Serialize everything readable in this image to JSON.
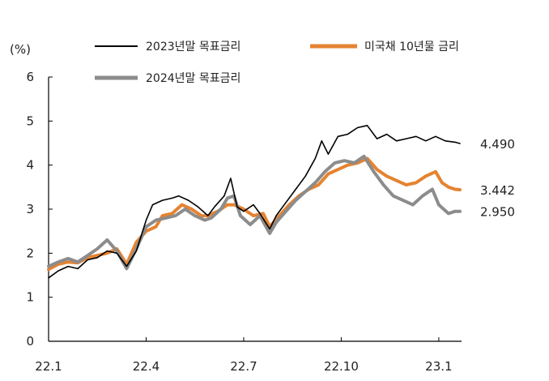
{
  "chart_data": {
    "type": "line",
    "unit_label": "(%)",
    "ylim": [
      0,
      6
    ],
    "yticks": [
      "0",
      "1",
      "2",
      "3",
      "4",
      "5",
      "6"
    ],
    "xlim": [
      0,
      12.7
    ],
    "xticks": [
      {
        "pos": 0,
        "label": "22.1"
      },
      {
        "pos": 3,
        "label": "22.4"
      },
      {
        "pos": 6,
        "label": "22.7"
      },
      {
        "pos": 9,
        "label": "22.10"
      },
      {
        "pos": 12,
        "label": "23.1"
      }
    ],
    "grid": false,
    "legend_position": "top",
    "series": [
      {
        "name": "2023년말 목표금리",
        "color": "#000000",
        "end_value_label": "4.490",
        "points": [
          [
            0.0,
            1.44
          ],
          [
            0.3,
            1.6
          ],
          [
            0.6,
            1.7
          ],
          [
            0.9,
            1.65
          ],
          [
            1.2,
            1.85
          ],
          [
            1.5,
            1.9
          ],
          [
            1.8,
            2.05
          ],
          [
            2.1,
            2.0
          ],
          [
            2.4,
            1.7
          ],
          [
            2.7,
            2.05
          ],
          [
            3.0,
            2.75
          ],
          [
            3.2,
            3.1
          ],
          [
            3.5,
            3.2
          ],
          [
            3.8,
            3.25
          ],
          [
            4.0,
            3.3
          ],
          [
            4.3,
            3.2
          ],
          [
            4.6,
            3.05
          ],
          [
            4.9,
            2.85
          ],
          [
            5.1,
            3.05
          ],
          [
            5.4,
            3.3
          ],
          [
            5.6,
            3.7
          ],
          [
            5.8,
            3.05
          ],
          [
            6.0,
            2.95
          ],
          [
            6.3,
            3.1
          ],
          [
            6.5,
            2.9
          ],
          [
            6.8,
            2.55
          ],
          [
            7.0,
            2.85
          ],
          [
            7.3,
            3.15
          ],
          [
            7.6,
            3.45
          ],
          [
            7.9,
            3.75
          ],
          [
            8.2,
            4.15
          ],
          [
            8.4,
            4.55
          ],
          [
            8.6,
            4.25
          ],
          [
            8.9,
            4.65
          ],
          [
            9.2,
            4.7
          ],
          [
            9.5,
            4.85
          ],
          [
            9.8,
            4.9
          ],
          [
            10.1,
            4.6
          ],
          [
            10.4,
            4.7
          ],
          [
            10.7,
            4.55
          ],
          [
            11.0,
            4.6
          ],
          [
            11.3,
            4.65
          ],
          [
            11.6,
            4.55
          ],
          [
            11.9,
            4.65
          ],
          [
            12.2,
            4.55
          ],
          [
            12.5,
            4.52
          ],
          [
            12.65,
            4.49
          ]
        ]
      },
      {
        "name": "미국채 10년물 금리",
        "color": "#e58331",
        "end_value_label": "3.442",
        "points": [
          [
            0.0,
            1.63
          ],
          [
            0.3,
            1.75
          ],
          [
            0.6,
            1.8
          ],
          [
            0.9,
            1.78
          ],
          [
            1.2,
            1.9
          ],
          [
            1.5,
            1.95
          ],
          [
            1.8,
            2.0
          ],
          [
            2.1,
            2.1
          ],
          [
            2.4,
            1.75
          ],
          [
            2.7,
            2.25
          ],
          [
            3.0,
            2.5
          ],
          [
            3.3,
            2.6
          ],
          [
            3.5,
            2.85
          ],
          [
            3.8,
            2.9
          ],
          [
            4.1,
            3.1
          ],
          [
            4.4,
            3.0
          ],
          [
            4.7,
            2.85
          ],
          [
            4.9,
            2.85
          ],
          [
            5.2,
            2.95
          ],
          [
            5.5,
            3.1
          ],
          [
            5.7,
            3.1
          ],
          [
            6.0,
            3.0
          ],
          [
            6.3,
            2.85
          ],
          [
            6.6,
            2.9
          ],
          [
            6.8,
            2.6
          ],
          [
            7.1,
            2.85
          ],
          [
            7.4,
            3.1
          ],
          [
            7.7,
            3.3
          ],
          [
            8.0,
            3.45
          ],
          [
            8.3,
            3.55
          ],
          [
            8.6,
            3.8
          ],
          [
            8.9,
            3.9
          ],
          [
            9.2,
            4.0
          ],
          [
            9.5,
            4.05
          ],
          [
            9.8,
            4.15
          ],
          [
            10.1,
            3.9
          ],
          [
            10.4,
            3.75
          ],
          [
            10.7,
            3.65
          ],
          [
            11.0,
            3.55
          ],
          [
            11.3,
            3.6
          ],
          [
            11.6,
            3.75
          ],
          [
            11.9,
            3.85
          ],
          [
            12.1,
            3.6
          ],
          [
            12.3,
            3.5
          ],
          [
            12.5,
            3.45
          ],
          [
            12.65,
            3.44
          ]
        ]
      },
      {
        "name": "2024년말 목표금리",
        "color": "#8c8c8c",
        "end_value_label": "2.950",
        "points": [
          [
            0.0,
            1.7
          ],
          [
            0.3,
            1.8
          ],
          [
            0.6,
            1.88
          ],
          [
            0.9,
            1.8
          ],
          [
            1.2,
            1.95
          ],
          [
            1.5,
            2.1
          ],
          [
            1.8,
            2.3
          ],
          [
            2.1,
            2.05
          ],
          [
            2.4,
            1.65
          ],
          [
            2.7,
            2.1
          ],
          [
            3.0,
            2.6
          ],
          [
            3.3,
            2.75
          ],
          [
            3.6,
            2.8
          ],
          [
            3.9,
            2.85
          ],
          [
            4.2,
            3.0
          ],
          [
            4.5,
            2.85
          ],
          [
            4.8,
            2.75
          ],
          [
            5.0,
            2.8
          ],
          [
            5.3,
            3.0
          ],
          [
            5.5,
            3.25
          ],
          [
            5.7,
            3.3
          ],
          [
            5.9,
            2.85
          ],
          [
            6.2,
            2.65
          ],
          [
            6.5,
            2.85
          ],
          [
            6.8,
            2.45
          ],
          [
            7.0,
            2.7
          ],
          [
            7.3,
            2.95
          ],
          [
            7.6,
            3.2
          ],
          [
            7.9,
            3.4
          ],
          [
            8.2,
            3.6
          ],
          [
            8.5,
            3.85
          ],
          [
            8.8,
            4.05
          ],
          [
            9.1,
            4.1
          ],
          [
            9.4,
            4.05
          ],
          [
            9.7,
            4.2
          ],
          [
            10.0,
            3.85
          ],
          [
            10.3,
            3.55
          ],
          [
            10.6,
            3.3
          ],
          [
            10.9,
            3.2
          ],
          [
            11.2,
            3.1
          ],
          [
            11.5,
            3.3
          ],
          [
            11.8,
            3.45
          ],
          [
            12.0,
            3.1
          ],
          [
            12.3,
            2.9
          ],
          [
            12.5,
            2.95
          ],
          [
            12.65,
            2.95
          ]
        ]
      }
    ]
  }
}
